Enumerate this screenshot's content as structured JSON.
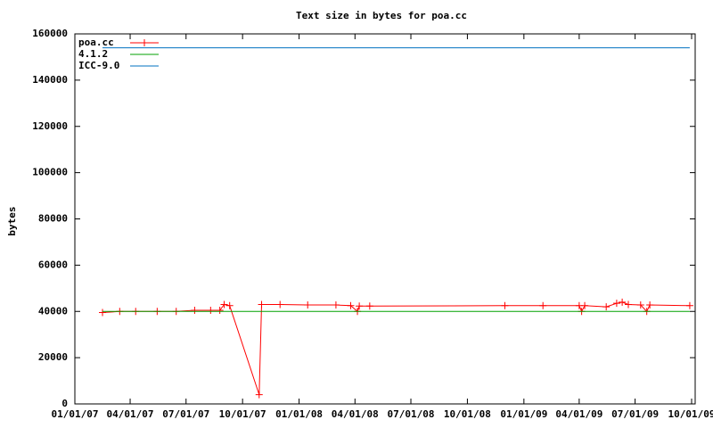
{
  "chart_data": {
    "type": "line",
    "title": "Text size in bytes for poa.cc",
    "ylabel": "bytes",
    "xlim": [
      "01/01/07",
      "10/01/09"
    ],
    "xticks": [
      "01/01/07",
      "04/01/07",
      "07/01/07",
      "10/01/07",
      "01/01/08",
      "04/01/08",
      "07/01/08",
      "10/01/08",
      "01/01/09",
      "04/01/09",
      "07/01/09",
      "10/01/09"
    ],
    "ylim": [
      0,
      160000
    ],
    "yticks": [
      0,
      20000,
      40000,
      60000,
      80000,
      100000,
      120000,
      140000,
      160000
    ],
    "legend": "upper-left",
    "series": [
      {
        "name": "poa.cc",
        "color": "#ff0000",
        "marker": "+",
        "x": [
          "02/15/07",
          "03/15/07",
          "04/10/07",
          "05/15/07",
          "06/15/07",
          "07/15/07",
          "08/10/07",
          "08/25/07",
          "09/01/07",
          "09/10/07",
          "10/28/07",
          "11/01/07",
          "12/01/07",
          "01/15/08",
          "03/01/08",
          "03/25/08",
          "04/05/08",
          "04/08/08",
          "04/25/08",
          "12/01/08",
          "02/01/09",
          "04/01/09",
          "04/05/09",
          "04/10/09",
          "05/15/09",
          "06/01/09",
          "06/10/09",
          "06/20/09",
          "07/10/09",
          "07/20/09",
          "07/25/09",
          "09/28/09"
        ],
        "values": [
          39500,
          40000,
          40000,
          40000,
          40000,
          40500,
          40500,
          40500,
          43000,
          42500,
          4000,
          43000,
          43000,
          42800,
          42800,
          42500,
          40000,
          42300,
          42300,
          42500,
          42500,
          42500,
          40000,
          42500,
          42000,
          43500,
          44000,
          43000,
          42800,
          40000,
          42800,
          42500
        ]
      },
      {
        "name": "4.1.2",
        "color": "#00a000",
        "x": [
          "02/15/07",
          "09/28/09"
        ],
        "values": [
          40000,
          40000
        ]
      },
      {
        "name": "ICC-9.0",
        "color": "#0070c0",
        "x": [
          "02/15/07",
          "09/28/09"
        ],
        "values": [
          154000,
          154000
        ]
      }
    ]
  }
}
